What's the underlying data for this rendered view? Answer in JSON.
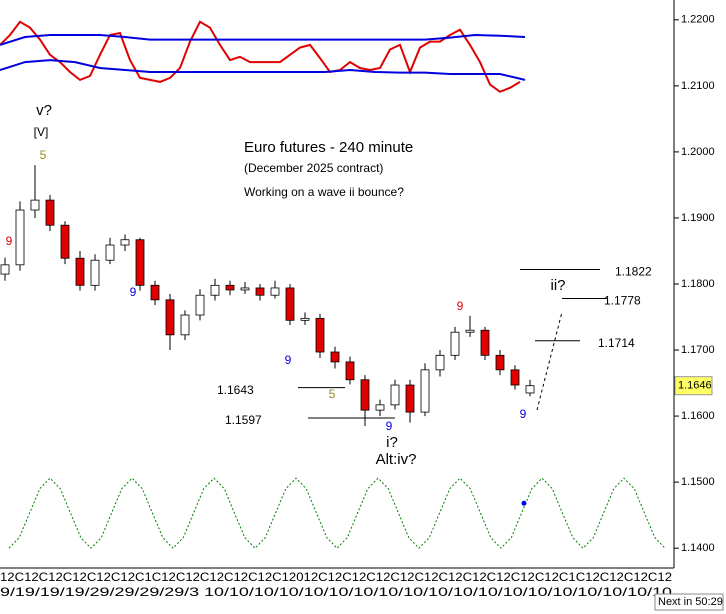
{
  "chart_data": {
    "type": "candlestick",
    "title": "Euro futures - 240 minute",
    "subtitle": "(December 2025 contract)",
    "caption": "Working on a wave ii bounce?",
    "open": [
      1.1815,
      1.1829,
      1.1912,
      1.1927,
      1.1889,
      1.1839,
      1.1798,
      1.1836,
      1.1859,
      1.1867,
      1.1798,
      1.1776,
      1.1723,
      1.1753,
      1.1783,
      1.1798,
      1.1791,
      1.1794,
      1.1783,
      1.1794,
      1.1745,
      1.1748,
      1.1697,
      1.1682,
      1.1655,
      1.1609,
      1.1617,
      1.1647,
      1.1606,
      1.167,
      1.1692,
      1.1727,
      1.173,
      1.1692,
      1.167,
      1.1635
    ],
    "high": [
      1.184,
      1.1925,
      1.198,
      1.1935,
      1.1895,
      1.185,
      1.1845,
      1.187,
      1.1875,
      1.187,
      1.1805,
      1.1785,
      1.176,
      1.1792,
      1.1808,
      1.1805,
      1.1803,
      1.18,
      1.1805,
      1.18,
      1.1757,
      1.1755,
      1.1705,
      1.169,
      1.1662,
      1.1625,
      1.1655,
      1.1655,
      1.168,
      1.17,
      1.1735,
      1.1752,
      1.1735,
      1.17,
      1.1677,
      1.1655
    ],
    "low": [
      1.1805,
      1.182,
      1.19,
      1.188,
      1.183,
      1.179,
      1.179,
      1.183,
      1.185,
      1.179,
      1.1768,
      1.17,
      1.1715,
      1.1745,
      1.1775,
      1.1783,
      1.1785,
      1.1775,
      1.1778,
      1.1738,
      1.1738,
      1.1688,
      1.1672,
      1.1648,
      1.1585,
      1.16,
      1.161,
      1.159,
      1.16,
      1.166,
      1.1685,
      1.172,
      1.1685,
      1.1662,
      1.164,
      1.163
    ],
    "close": [
      1.1829,
      1.1912,
      1.1927,
      1.1889,
      1.1839,
      1.1798,
      1.1836,
      1.1859,
      1.1867,
      1.1798,
      1.1776,
      1.1723,
      1.1753,
      1.1783,
      1.1798,
      1.1791,
      1.1794,
      1.1783,
      1.1794,
      1.1745,
      1.1748,
      1.1697,
      1.1682,
      1.1655,
      1.1609,
      1.1617,
      1.1647,
      1.1606,
      1.167,
      1.1692,
      1.1727,
      1.173,
      1.1692,
      1.167,
      1.1647,
      1.1646
    ],
    "up_color": "#ffffff",
    "down_color": "#e00000",
    "ylim": [
      1.1373,
      1.223
    ],
    "yticks": [
      {
        "value": 1.22,
        "label": "1.2200"
      },
      {
        "value": 1.21,
        "label": "1.2100"
      },
      {
        "value": 1.2,
        "label": "1.2000"
      },
      {
        "value": 1.19,
        "label": "1.1900"
      },
      {
        "value": 1.18,
        "label": "1.1800"
      },
      {
        "value": 1.17,
        "label": "1.1700"
      },
      {
        "value": 1.16,
        "label": "1.1600"
      },
      {
        "value": 1.15,
        "label": "1.1500"
      },
      {
        "value": 1.14,
        "label": "1.1400"
      }
    ],
    "last_price": 1.1646,
    "last_price_color": "#ffff66",
    "levels": [
      1.1822,
      1.1778,
      1.1714,
      1.1643,
      1.1597
    ],
    "annotations": [
      {
        "text": "v?",
        "color": "#000000"
      },
      {
        "text": "[V]",
        "color": "#000000"
      },
      {
        "text": "5",
        "color": "#a08a20"
      },
      {
        "text": "9",
        "color": "#e00000"
      },
      {
        "text": "9",
        "color": "#0000dd"
      },
      {
        "text": "9",
        "color": "#0000dd"
      },
      {
        "text": "5",
        "color": "#a08a20"
      },
      {
        "text": "9",
        "color": "#0000dd"
      },
      {
        "text": "i?",
        "color": "#000000"
      },
      {
        "text": "Alt:iv?",
        "color": "#000000"
      },
      {
        "text": "9",
        "color": "#e00000"
      },
      {
        "text": "9",
        "color": "#0000dd"
      },
      {
        "text": "ii?",
        "color": "#000000"
      }
    ],
    "indicators": [
      {
        "color": "#e00000",
        "values": [
          1.2162,
          1.2177,
          1.2197,
          1.2188,
          1.217,
          1.2147,
          1.2136,
          1.2121,
          1.2109,
          1.2115,
          1.2147,
          1.2177,
          1.218,
          1.2139,
          1.2112,
          1.2109,
          1.2106,
          1.2112,
          1.2127,
          1.2167,
          1.2197,
          1.2188,
          1.2162,
          1.2139,
          1.2144,
          1.2136,
          1.2136,
          1.2136,
          1.2136,
          1.2147,
          1.2158,
          1.2162,
          1.2142,
          1.2121,
          1.2124,
          1.2136,
          1.2127,
          1.2124,
          1.2127,
          1.2155,
          1.2162,
          1.2121,
          1.2158,
          1.2167,
          1.2167,
          1.2177,
          1.2185,
          1.2162,
          1.2136,
          1.2102,
          1.2091,
          1.2097,
          1.2106
        ]
      },
      {
        "color": "#0000dd",
        "values": [
          1.2162,
          1.2174,
          1.2177,
          1.2177,
          1.2177,
          1.2174,
          1.217,
          1.217,
          1.217,
          1.217,
          1.217,
          1.217,
          1.217,
          1.217,
          1.217,
          1.217,
          1.217,
          1.217,
          1.2173,
          1.2177,
          1.2176,
          1.2174
        ]
      },
      {
        "color": "#0000dd",
        "values": [
          1.2124,
          1.2136,
          1.2139,
          1.2136,
          1.2127,
          1.2124,
          1.2121,
          1.2121,
          1.2121,
          1.2121,
          1.2121,
          1.2121,
          1.2121,
          1.2121,
          1.2124,
          1.2121,
          1.212,
          1.212,
          1.2118,
          1.2118,
          1.2118,
          1.2109
        ]
      }
    ],
    "cycle": {
      "color": "#008000",
      "values": [
        1.14,
        1.1416,
        1.1453,
        1.149,
        1.1506,
        1.149,
        1.1453,
        1.1416,
        1.14,
        1.1416,
        1.1453,
        1.149,
        1.1506,
        1.149,
        1.1453,
        1.1416,
        1.14,
        1.1416,
        1.1453,
        1.149,
        1.1506,
        1.149,
        1.1453,
        1.1416,
        1.14,
        1.1416,
        1.1453,
        1.149,
        1.1506,
        1.149,
        1.1453,
        1.1416,
        1.14,
        1.1416,
        1.1453,
        1.149,
        1.1506,
        1.149,
        1.1453,
        1.1416,
        1.14,
        1.1416,
        1.1453,
        1.149,
        1.1506,
        1.149,
        1.1453,
        1.1416,
        1.14,
        1.1416,
        1.1453,
        1.149,
        1.1506,
        1.149,
        1.1453,
        1.1416,
        1.14,
        1.1416,
        1.1453,
        1.149,
        1.1506,
        1.149,
        1.1453,
        1.1416,
        1.14
      ]
    },
    "marker": {
      "color": "#0000ff",
      "value": 1.1468
    },
    "x_axis_labels": [
      "12C12C12C12C12C12C1C12C12C12C12C12C12012C12C12C12C12C12C12C12C12C12C12C1C12C12C12C12",
      "9/19/19/19/29/29/29/29/3 10/10/10/10/10/10/10/10/10/10/10/10/10/10/10/10/10/10/10"
    ],
    "countdown": "Next in 50:29"
  }
}
